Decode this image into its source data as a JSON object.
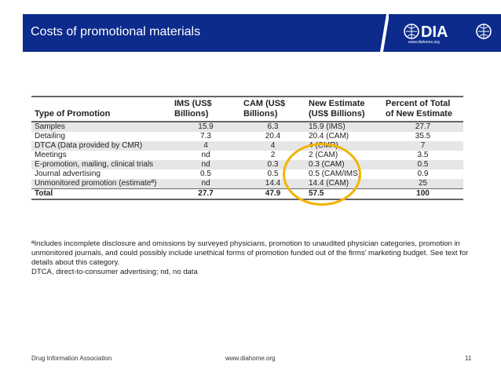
{
  "header": {
    "title": "Costs of promotional materials",
    "logo_text": "DIA",
    "logo_url": "www.diahome.org"
  },
  "table": {
    "columns": [
      "Type of Promotion",
      "IMS  (US$ Billions)",
      "CAM (US$ Billions)",
      "New Estimate (US$ Billions)",
      "Percent of Total of New Estimate"
    ],
    "rows": [
      [
        "Samples",
        "15.9",
        "6.3",
        "15.9 (IMS)",
        "27.7"
      ],
      [
        "Detailing",
        "7.3",
        "20.4",
        "20.4 (CAM)",
        "35.5"
      ],
      [
        "DTCA (Data provided by CMR)",
        "4",
        "4",
        "4 (CMR)",
        "7"
      ],
      [
        "Meetings",
        "nd",
        "2",
        "2 (CAM)",
        "3.5"
      ],
      [
        "E-promotion, mailing, clinical trials",
        "nd",
        "0.3",
        "0.3 (CAM)",
        "0.5"
      ],
      [
        "Journal advertising",
        "0.5",
        "0.5",
        "0.5 (CAM/IMS)",
        "0.9"
      ],
      [
        "Unmonitored promotion  (estimateª)",
        "nd",
        "14.4",
        "14.4 (CAM)",
        "25"
      ]
    ],
    "total": [
      "Total",
      "27.7",
      "47.9",
      "57.5",
      "100"
    ]
  },
  "notes": {
    "line1": "ªIncludes incomplete disclosure and omissions by surveyed physicians, promotion to unaudited physician categories, promotion in unmonitored journals, and could possibly include unethical forms of promotion funded out of the firms' marketing budget. See text for details about this category.",
    "line2": "DTCA, direct-to-consumer advertising; nd, no data"
  },
  "footer": {
    "left": "Drug Information Association",
    "center": "www.diahome.org",
    "page": "11"
  },
  "colors": {
    "header_blue": "#0c2b8c",
    "highlight_circle": "#f2b400"
  }
}
